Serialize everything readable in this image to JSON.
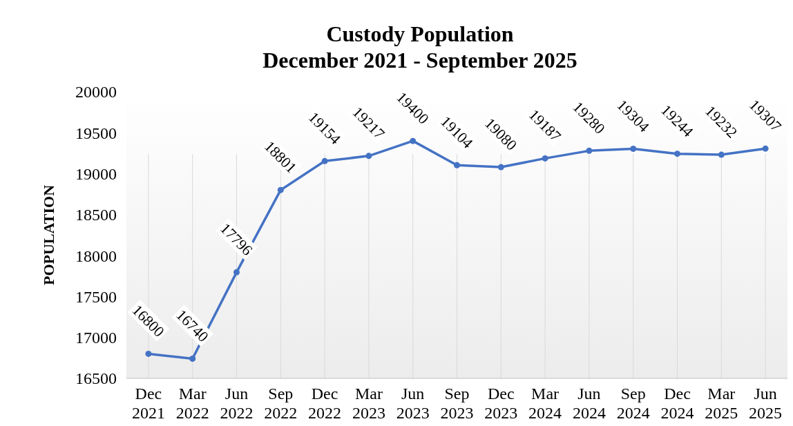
{
  "chart_data": {
    "type": "line",
    "title": "Custody Population",
    "subtitle": "December 2021 - September 2025",
    "ylabel": "POPULATION",
    "categories": [
      "Dec 2021",
      "Mar 2022",
      "Jun 2022",
      "Sep 2022",
      "Dec 2022",
      "Mar 2023",
      "Jun 2023",
      "Sep 2023",
      "Dec 2023",
      "Mar 2024",
      "Jun 2024",
      "Sep 2024",
      "Dec 2024",
      "Mar 2025",
      "Jun 2025"
    ],
    "values": [
      16800,
      16740,
      17796,
      18801,
      19154,
      19217,
      19400,
      19104,
      19080,
      19187,
      19280,
      19304,
      19244,
      19232,
      19307
    ],
    "color": "#4472c4",
    "ylim": [
      16500,
      20000
    ],
    "yticks": [
      16500,
      17000,
      17500,
      18000,
      18500,
      19000,
      19500,
      20000
    ],
    "grid": "x",
    "marker": "circle",
    "data_labels": true
  }
}
